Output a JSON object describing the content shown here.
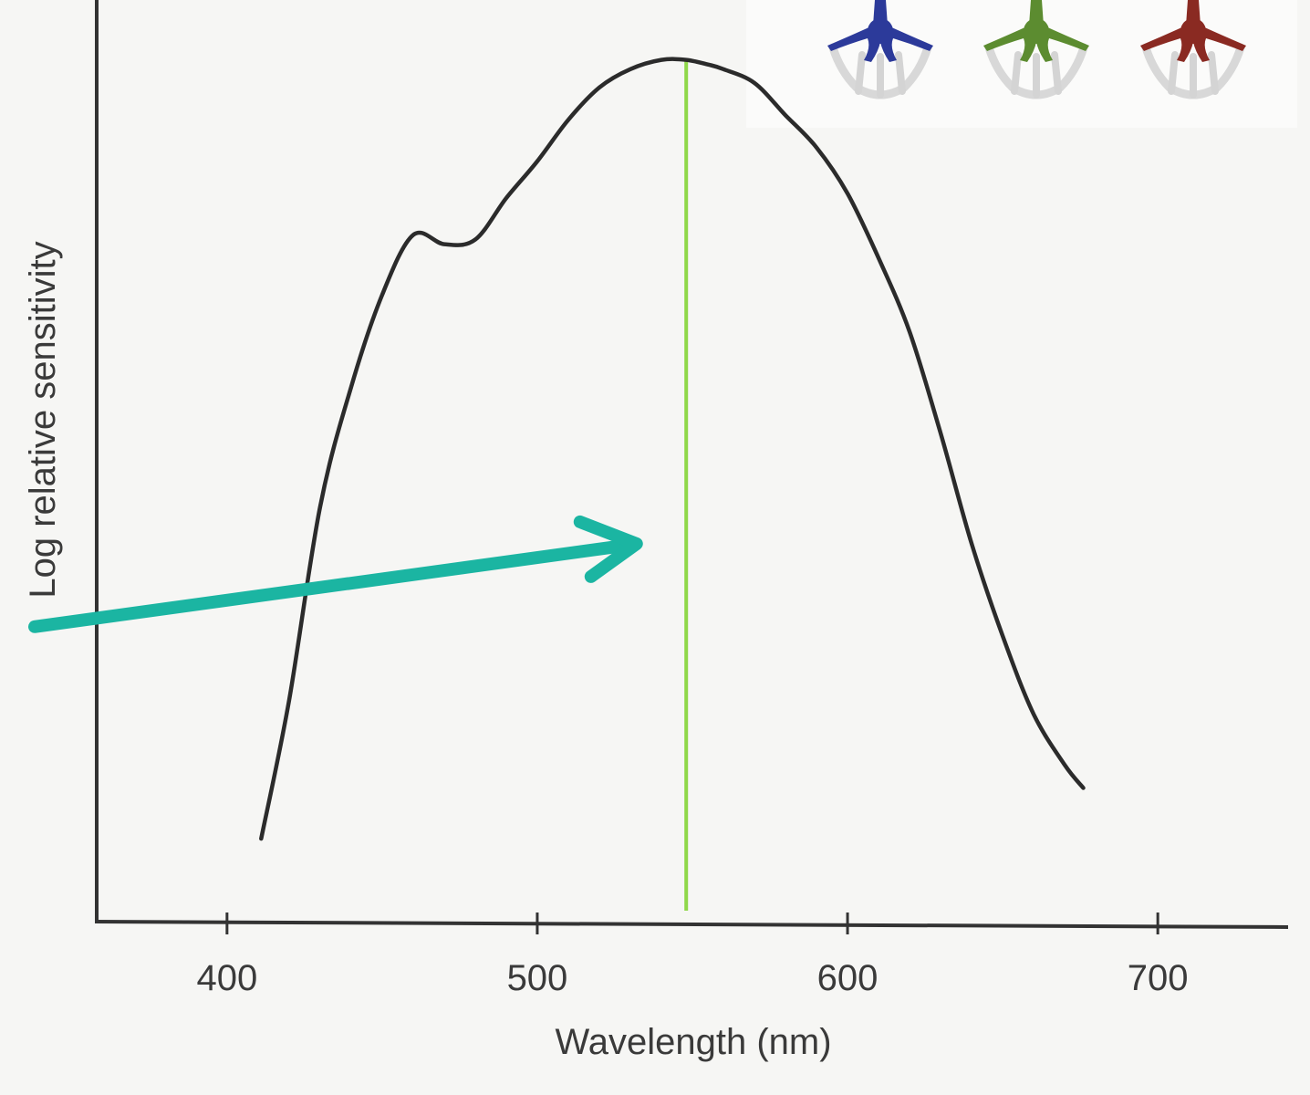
{
  "chart_data": {
    "type": "line",
    "title": "",
    "xlabel": "Wavelength (nm)",
    "ylabel": "Log relative sensitivity",
    "xlim": [
      358,
      742
    ],
    "ylim": [
      0,
      1
    ],
    "x_ticks": [
      "400",
      "500",
      "600",
      "700"
    ],
    "y_ticks": [],
    "grid": false,
    "series": [
      {
        "color": "#2b2b2b",
        "x": [
          411,
          420,
          430,
          440,
          450,
          460,
          470,
          480,
          490,
          500,
          510,
          520,
          530,
          540,
          548,
          555,
          560,
          570,
          580,
          590,
          600,
          610,
          620,
          630,
          640,
          650,
          660,
          670,
          676
        ],
        "y": [
          0.09,
          0.24,
          0.45,
          0.58,
          0.68,
          0.745,
          0.735,
          0.74,
          0.785,
          0.825,
          0.87,
          0.905,
          0.925,
          0.935,
          0.935,
          0.93,
          0.925,
          0.91,
          0.875,
          0.84,
          0.79,
          0.72,
          0.64,
          0.53,
          0.41,
          0.31,
          0.225,
          0.17,
          0.145
        ]
      }
    ],
    "reference_line": {
      "x": 548,
      "color": "#8fd84a"
    },
    "annotation_arrow": {
      "color": "#1bb5a2",
      "from": [
        338,
        0.32
      ],
      "to": [
        532,
        0.41
      ]
    },
    "cone_icons": [
      {
        "name": "blue-cone-icon",
        "color": "#2c3a9a"
      },
      {
        "name": "green-cone-icon",
        "color": "#5c8c30"
      },
      {
        "name": "red-cone-icon",
        "color": "#8a2a22"
      }
    ]
  }
}
